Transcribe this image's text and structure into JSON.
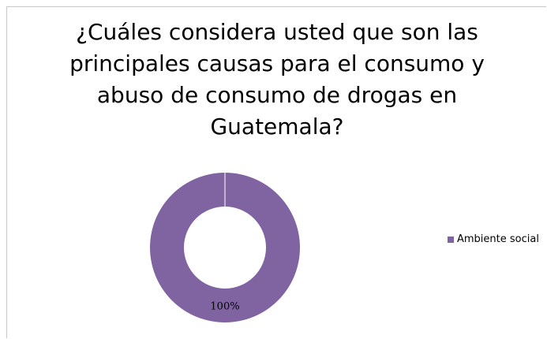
{
  "chart_data": {
    "type": "pie",
    "variant": "doughnut",
    "title_lines": [
      "¿Cuáles considera usted que son las",
      "principales causas para el consumo y",
      "abuso de consumo de drogas en",
      "Guatemala?"
    ],
    "categories": [
      "Ambiente social"
    ],
    "values": [
      100
    ],
    "data_labels": [
      "100%"
    ],
    "colors": [
      "#8064a2"
    ],
    "legend_position": "right"
  }
}
